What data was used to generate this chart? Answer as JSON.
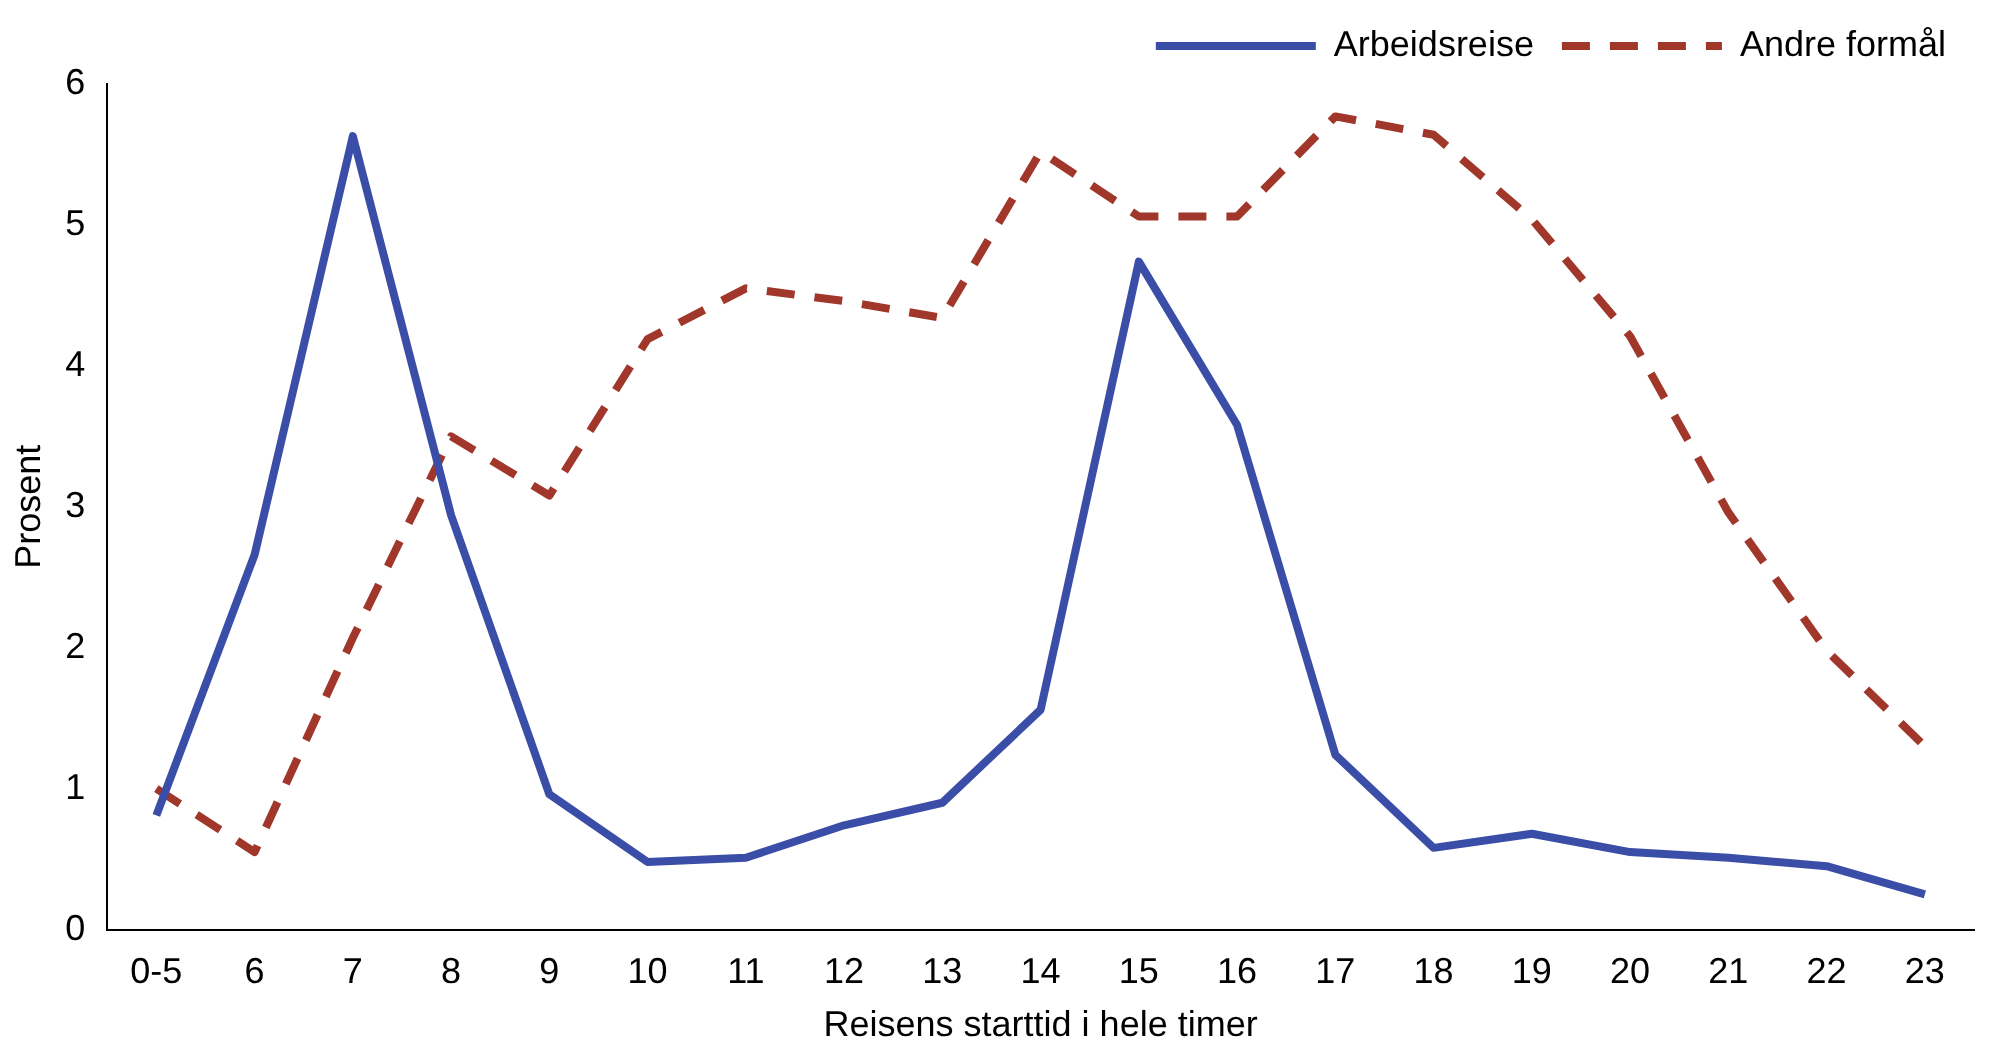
{
  "chart_data": {
    "type": "line",
    "xlabel": "Reisens starttid i hele timer",
    "ylabel": "Prosent",
    "categories": [
      "0-5",
      "6",
      "7",
      "8",
      "9",
      "10",
      "11",
      "12",
      "13",
      "14",
      "15",
      "16",
      "17",
      "18",
      "19",
      "20",
      "21",
      "22",
      "23"
    ],
    "series": [
      {
        "name": "Arbeidsreise",
        "color": "#3a4ea8",
        "line_style": "solid",
        "values": [
          0.81,
          2.66,
          5.63,
          2.94,
          0.96,
          0.48,
          0.51,
          0.74,
          0.9,
          1.56,
          4.74,
          3.58,
          1.24,
          0.58,
          0.68,
          0.55,
          0.51,
          0.45,
          0.25
        ]
      },
      {
        "name": "Andre formål",
        "color": "#a0372a",
        "line_style": "dashed",
        "values": [
          1.0,
          0.55,
          2.07,
          3.5,
          3.08,
          4.19,
          4.55,
          4.46,
          4.34,
          5.52,
          5.06,
          5.06,
          5.77,
          5.64,
          5.04,
          4.21,
          2.96,
          1.98,
          1.3
        ]
      }
    ],
    "ylim": [
      0,
      6
    ],
    "yticks": [
      0,
      1,
      2,
      3,
      4,
      5,
      6
    ],
    "grid": false,
    "legend": "top right",
    "marker": "none"
  }
}
